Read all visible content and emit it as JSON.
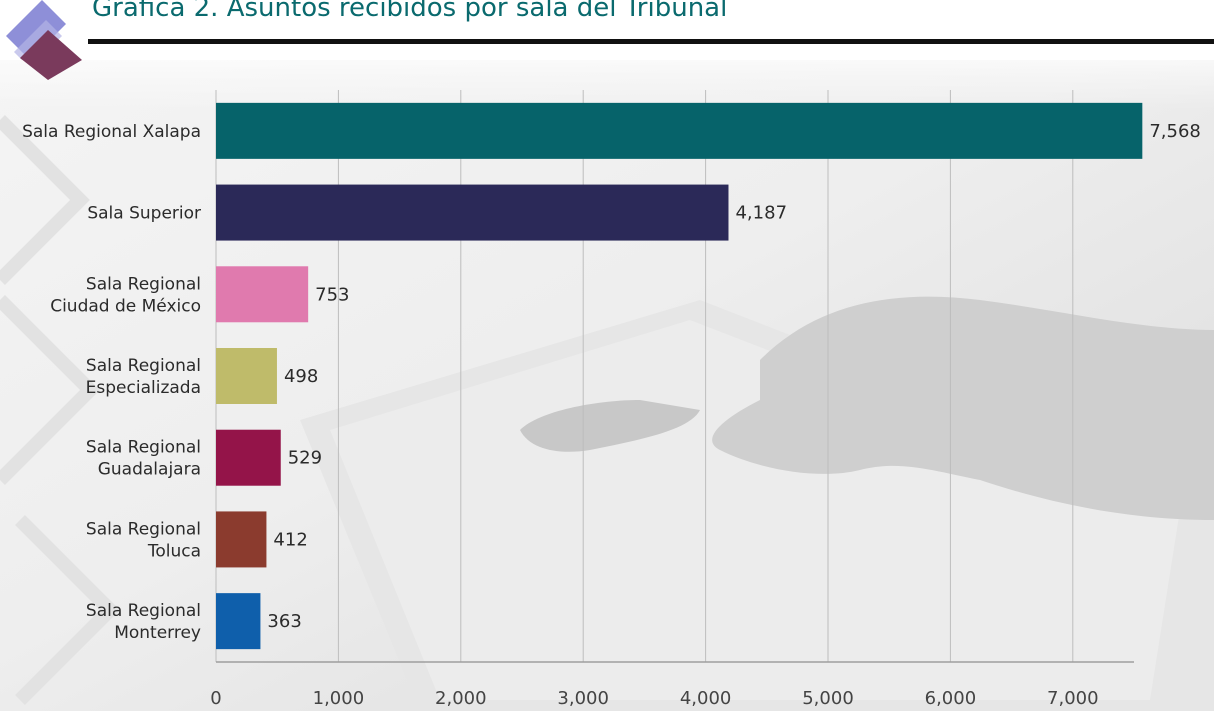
{
  "title": "Gráfica 2. Asuntos recibidos por sala del Tribunal",
  "colors": {
    "title": "#0a6a6e",
    "grid": "#bdbdbd",
    "logo_top": "#8e8fd8",
    "logo_bottom": "#7a3a5c"
  },
  "chart_data": {
    "type": "bar",
    "orientation": "horizontal",
    "categories": [
      [
        "Sala Regional Xalapa"
      ],
      [
        "Sala Superior"
      ],
      [
        "Sala Regional",
        "Ciudad de México"
      ],
      [
        "Sala Regional",
        "Especializada"
      ],
      [
        "Sala Regional",
        "Guadalajara"
      ],
      [
        "Sala Regional",
        "Toluca"
      ],
      [
        "Sala Regional",
        "Monterrey"
      ]
    ],
    "values": [
      7568,
      4187,
      753,
      498,
      529,
      412,
      363
    ],
    "value_labels": [
      "7,568",
      "4,187",
      "753",
      "498",
      "529",
      "412",
      "363"
    ],
    "bar_colors": [
      "#06636a",
      "#2b2958",
      "#e07aae",
      "#bfbb6a",
      "#941449",
      "#8b3b2e",
      "#0f5fab"
    ],
    "xlim": [
      0,
      7500
    ],
    "xticks": [
      0,
      1000,
      2000,
      3000,
      4000,
      5000,
      6000,
      7000
    ],
    "xtick_labels": [
      "0",
      "1,000",
      "2,000",
      "3,000",
      "4,000",
      "5,000",
      "6,000",
      "7,000"
    ],
    "grid": "vertical",
    "legend": "none"
  }
}
